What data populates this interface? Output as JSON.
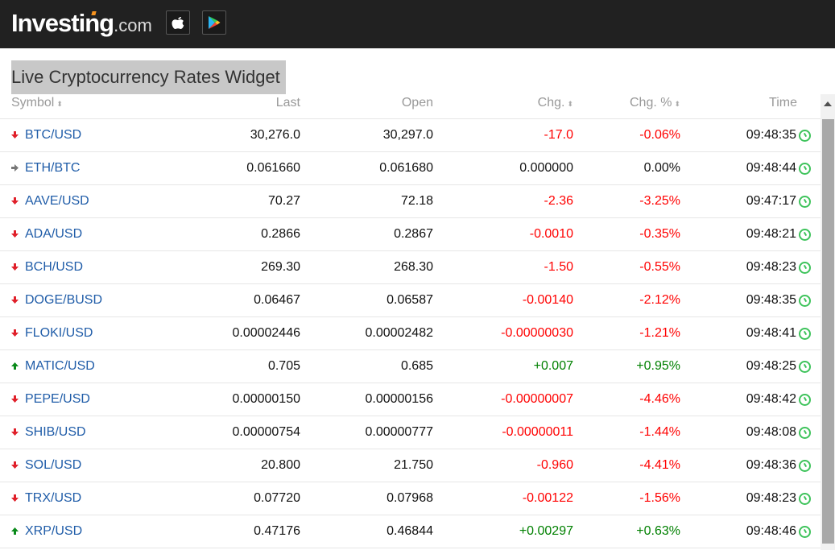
{
  "header": {
    "logo_main": "Investing",
    "logo_suffix": ".com",
    "apple_icon": "apple-icon",
    "play_icon": "google-play-icon"
  },
  "widget_title": "Live Cryptocurrency Rates Widget",
  "columns": {
    "symbol": "Symbol",
    "last": "Last",
    "open": "Open",
    "chg": "Chg.",
    "pct": "Chg. %",
    "time": "Time",
    "sort_glyph": "⬍"
  },
  "colors": {
    "negative": "#ff0000",
    "positive": "#008000",
    "link": "#1f5ca8"
  },
  "rows": [
    {
      "dir": "down",
      "symbol": "BTC/USD",
      "last": "30,276.0",
      "open": "30,297.0",
      "chg": "-17.0",
      "pct": "-0.06%",
      "time": "09:48:35"
    },
    {
      "dir": "flat",
      "symbol": "ETH/BTC",
      "last": "0.061660",
      "open": "0.061680",
      "chg": "0.000000",
      "pct": "0.00%",
      "time": "09:48:44"
    },
    {
      "dir": "down",
      "symbol": "AAVE/USD",
      "last": "70.27",
      "open": "72.18",
      "chg": "-2.36",
      "pct": "-3.25%",
      "time": "09:47:17"
    },
    {
      "dir": "down",
      "symbol": "ADA/USD",
      "last": "0.2866",
      "open": "0.2867",
      "chg": "-0.0010",
      "pct": "-0.35%",
      "time": "09:48:21"
    },
    {
      "dir": "down",
      "symbol": "BCH/USD",
      "last": "269.30",
      "open": "268.30",
      "chg": "-1.50",
      "pct": "-0.55%",
      "time": "09:48:23"
    },
    {
      "dir": "down",
      "symbol": "DOGE/BUSD",
      "last": "0.06467",
      "open": "0.06587",
      "chg": "-0.00140",
      "pct": "-2.12%",
      "time": "09:48:35"
    },
    {
      "dir": "down",
      "symbol": "FLOKI/USD",
      "last": "0.00002446",
      "open": "0.00002482",
      "chg": "-0.00000030",
      "pct": "-1.21%",
      "time": "09:48:41"
    },
    {
      "dir": "up",
      "symbol": "MATIC/USD",
      "last": "0.705",
      "open": "0.685",
      "chg": "+0.007",
      "pct": "+0.95%",
      "time": "09:48:25"
    },
    {
      "dir": "down",
      "symbol": "PEPE/USD",
      "last": "0.00000150",
      "open": "0.00000156",
      "chg": "-0.00000007",
      "pct": "-4.46%",
      "time": "09:48:42"
    },
    {
      "dir": "down",
      "symbol": "SHIB/USD",
      "last": "0.00000754",
      "open": "0.00000777",
      "chg": "-0.00000011",
      "pct": "-1.44%",
      "time": "09:48:08"
    },
    {
      "dir": "down",
      "symbol": "SOL/USD",
      "last": "20.800",
      "open": "21.750",
      "chg": "-0.960",
      "pct": "-4.41%",
      "time": "09:48:36"
    },
    {
      "dir": "down",
      "symbol": "TRX/USD",
      "last": "0.07720",
      "open": "0.07968",
      "chg": "-0.00122",
      "pct": "-1.56%",
      "time": "09:48:23"
    },
    {
      "dir": "up",
      "symbol": "XRP/USD",
      "last": "0.47176",
      "open": "0.46844",
      "chg": "+0.00297",
      "pct": "+0.63%",
      "time": "09:48:46"
    }
  ]
}
